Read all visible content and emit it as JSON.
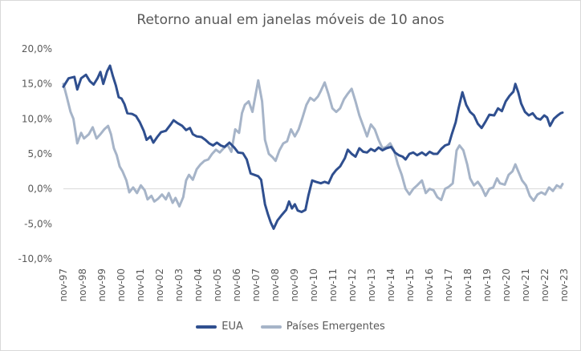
{
  "chart_data": {
    "type": "line",
    "title": "Retorno anual em janelas móveis de 10 anos",
    "xlabel": "",
    "ylabel": "",
    "ylim": [
      -10,
      20
    ],
    "y_ticks": [
      20,
      15,
      10,
      5,
      0,
      -5,
      -10
    ],
    "y_tick_labels": [
      "20,0%",
      "15,0%",
      "10,0%",
      "5,0%",
      "0,0%",
      "-5,0%",
      "-10,0%"
    ],
    "x_range": [
      1997.83,
      2023.75
    ],
    "x_tick_positions": [
      1997.83,
      1998.83,
      1999.83,
      2000.83,
      2001.83,
      2002.83,
      2003.83,
      2004.83,
      2005.83,
      2006.83,
      2007.83,
      2008.83,
      2009.83,
      2010.83,
      2011.83,
      2012.83,
      2013.83,
      2014.83,
      2015.83,
      2016.83,
      2017.83,
      2018.83,
      2019.83,
      2020.83,
      2021.83,
      2022.83,
      2023.83
    ],
    "x_tick_labels": [
      "nov-97",
      "nov-98",
      "nov-99",
      "nov-00",
      "nov-01",
      "nov-02",
      "nov-03",
      "nov-04",
      "nov-05",
      "nov-06",
      "nov-07",
      "nov-08",
      "nov-09",
      "nov-10",
      "nov-11",
      "nov-12",
      "nov-13",
      "nov-14",
      "nov-15",
      "nov-16",
      "nov-17",
      "nov-18",
      "nov-19",
      "nov-20",
      "nov-21",
      "nov-22",
      "nov-23"
    ],
    "legend_position": "bottom",
    "series": [
      {
        "name": "EUA",
        "color": "#2f4f8f",
        "points": [
          [
            1997.83,
            14.6
          ],
          [
            1998.1,
            15.8
          ],
          [
            1998.4,
            16.0
          ],
          [
            1998.55,
            14.2
          ],
          [
            1998.75,
            15.8
          ],
          [
            1999.0,
            16.3
          ],
          [
            1999.2,
            15.4
          ],
          [
            1999.4,
            14.9
          ],
          [
            1999.6,
            15.8
          ],
          [
            1999.75,
            16.7
          ],
          [
            1999.9,
            15.0
          ],
          [
            2000.1,
            16.8
          ],
          [
            2000.25,
            17.6
          ],
          [
            2000.4,
            16.1
          ],
          [
            2000.55,
            14.8
          ],
          [
            2000.7,
            13.1
          ],
          [
            2000.85,
            12.9
          ],
          [
            2001.0,
            12.1
          ],
          [
            2001.15,
            10.8
          ],
          [
            2001.4,
            10.7
          ],
          [
            2001.6,
            10.4
          ],
          [
            2001.8,
            9.5
          ],
          [
            2002.0,
            8.3
          ],
          [
            2002.15,
            7.0
          ],
          [
            2002.35,
            7.5
          ],
          [
            2002.5,
            6.6
          ],
          [
            2002.7,
            7.4
          ],
          [
            2002.9,
            8.1
          ],
          [
            2003.15,
            8.3
          ],
          [
            2003.4,
            9.2
          ],
          [
            2003.55,
            9.8
          ],
          [
            2003.75,
            9.4
          ],
          [
            2004.0,
            9.0
          ],
          [
            2004.2,
            8.4
          ],
          [
            2004.4,
            8.7
          ],
          [
            2004.55,
            7.8
          ],
          [
            2004.75,
            7.5
          ],
          [
            2005.0,
            7.4
          ],
          [
            2005.2,
            7.0
          ],
          [
            2005.4,
            6.5
          ],
          [
            2005.6,
            6.2
          ],
          [
            2005.8,
            6.6
          ],
          [
            2006.0,
            6.2
          ],
          [
            2006.2,
            6.0
          ],
          [
            2006.45,
            6.6
          ],
          [
            2006.7,
            5.9
          ],
          [
            2006.9,
            5.2
          ],
          [
            2007.15,
            5.1
          ],
          [
            2007.35,
            4.2
          ],
          [
            2007.55,
            2.2
          ],
          [
            2007.75,
            2.0
          ],
          [
            2007.95,
            1.8
          ],
          [
            2008.1,
            1.3
          ],
          [
            2008.3,
            -2.2
          ],
          [
            2008.45,
            -3.6
          ],
          [
            2008.6,
            -4.8
          ],
          [
            2008.75,
            -5.7
          ],
          [
            2008.95,
            -4.5
          ],
          [
            2009.15,
            -3.8
          ],
          [
            2009.4,
            -3.0
          ],
          [
            2009.55,
            -1.8
          ],
          [
            2009.7,
            -2.8
          ],
          [
            2009.85,
            -2.2
          ],
          [
            2010.0,
            -3.1
          ],
          [
            2010.2,
            -3.3
          ],
          [
            2010.4,
            -3.0
          ],
          [
            2010.55,
            -1.0
          ],
          [
            2010.75,
            1.2
          ],
          [
            2010.95,
            1.0
          ],
          [
            2011.2,
            0.8
          ],
          [
            2011.4,
            1.0
          ],
          [
            2011.6,
            0.8
          ],
          [
            2011.8,
            2.0
          ],
          [
            2012.0,
            2.7
          ],
          [
            2012.2,
            3.2
          ],
          [
            2012.45,
            4.4
          ],
          [
            2012.6,
            5.6
          ],
          [
            2012.8,
            5.0
          ],
          [
            2013.0,
            4.6
          ],
          [
            2013.2,
            5.8
          ],
          [
            2013.4,
            5.3
          ],
          [
            2013.6,
            5.2
          ],
          [
            2013.8,
            5.7
          ],
          [
            2014.0,
            5.4
          ],
          [
            2014.2,
            5.9
          ],
          [
            2014.4,
            5.5
          ],
          [
            2014.6,
            5.8
          ],
          [
            2014.85,
            6.0
          ],
          [
            2015.05,
            5.2
          ],
          [
            2015.25,
            4.8
          ],
          [
            2015.45,
            4.6
          ],
          [
            2015.6,
            4.2
          ],
          [
            2015.8,
            5.0
          ],
          [
            2016.0,
            5.2
          ],
          [
            2016.2,
            4.8
          ],
          [
            2016.45,
            5.2
          ],
          [
            2016.65,
            4.8
          ],
          [
            2016.85,
            5.3
          ],
          [
            2017.05,
            5.0
          ],
          [
            2017.25,
            5.0
          ],
          [
            2017.45,
            5.7
          ],
          [
            2017.65,
            6.2
          ],
          [
            2017.85,
            6.4
          ],
          [
            2018.0,
            7.8
          ],
          [
            2018.2,
            9.5
          ],
          [
            2018.35,
            11.5
          ],
          [
            2018.55,
            13.8
          ],
          [
            2018.75,
            12.0
          ],
          [
            2018.95,
            11.0
          ],
          [
            2019.15,
            10.5
          ],
          [
            2019.35,
            9.3
          ],
          [
            2019.55,
            8.7
          ],
          [
            2019.75,
            9.6
          ],
          [
            2019.95,
            10.6
          ],
          [
            2020.2,
            10.5
          ],
          [
            2020.4,
            11.5
          ],
          [
            2020.6,
            11.1
          ],
          [
            2020.8,
            12.5
          ],
          [
            2021.0,
            13.3
          ],
          [
            2021.2,
            13.9
          ],
          [
            2021.3,
            15.0
          ],
          [
            2021.45,
            13.8
          ],
          [
            2021.6,
            12.2
          ],
          [
            2021.8,
            11.0
          ],
          [
            2022.0,
            10.5
          ],
          [
            2022.2,
            10.8
          ],
          [
            2022.4,
            10.1
          ],
          [
            2022.6,
            9.9
          ],
          [
            2022.8,
            10.5
          ],
          [
            2022.95,
            10.2
          ],
          [
            2023.1,
            9.0
          ],
          [
            2023.3,
            10.0
          ],
          [
            2023.5,
            10.5
          ],
          [
            2023.65,
            10.8
          ],
          [
            2023.75,
            10.9
          ]
        ]
      },
      {
        "name": "Países Emergentes",
        "color": "#a6b4c8",
        "points": [
          [
            1997.83,
            15.0
          ],
          [
            1998.0,
            13.2
          ],
          [
            1998.2,
            11.0
          ],
          [
            1998.35,
            10.0
          ],
          [
            1998.55,
            6.5
          ],
          [
            1998.75,
            8.0
          ],
          [
            1998.9,
            7.2
          ],
          [
            1999.15,
            7.8
          ],
          [
            1999.35,
            8.8
          ],
          [
            1999.55,
            7.2
          ],
          [
            1999.75,
            7.8
          ],
          [
            1999.95,
            8.5
          ],
          [
            2000.15,
            9.0
          ],
          [
            2000.3,
            7.8
          ],
          [
            2000.45,
            5.8
          ],
          [
            2000.6,
            4.8
          ],
          [
            2000.75,
            3.2
          ],
          [
            2000.9,
            2.5
          ],
          [
            2001.1,
            1.2
          ],
          [
            2001.25,
            -0.5
          ],
          [
            2001.45,
            0.2
          ],
          [
            2001.65,
            -0.6
          ],
          [
            2001.85,
            0.5
          ],
          [
            2002.05,
            -0.2
          ],
          [
            2002.2,
            -1.5
          ],
          [
            2002.4,
            -1.0
          ],
          [
            2002.55,
            -1.8
          ],
          [
            2002.75,
            -1.4
          ],
          [
            2002.95,
            -0.8
          ],
          [
            2003.15,
            -1.5
          ],
          [
            2003.3,
            -0.6
          ],
          [
            2003.5,
            -2.0
          ],
          [
            2003.65,
            -1.3
          ],
          [
            2003.85,
            -2.5
          ],
          [
            2004.05,
            -1.2
          ],
          [
            2004.2,
            1.2
          ],
          [
            2004.35,
            2.0
          ],
          [
            2004.55,
            1.3
          ],
          [
            2004.75,
            2.8
          ],
          [
            2004.95,
            3.5
          ],
          [
            2005.15,
            4.0
          ],
          [
            2005.35,
            4.2
          ],
          [
            2005.55,
            5.0
          ],
          [
            2005.75,
            5.6
          ],
          [
            2005.95,
            5.2
          ],
          [
            2006.15,
            5.8
          ],
          [
            2006.35,
            6.3
          ],
          [
            2006.55,
            5.3
          ],
          [
            2006.75,
            8.5
          ],
          [
            2006.95,
            8.0
          ],
          [
            2007.1,
            10.8
          ],
          [
            2007.25,
            12.0
          ],
          [
            2007.45,
            12.5
          ],
          [
            2007.65,
            11.0
          ],
          [
            2007.85,
            14.0
          ],
          [
            2007.95,
            15.5
          ],
          [
            2008.15,
            12.5
          ],
          [
            2008.3,
            7.0
          ],
          [
            2008.5,
            5.0
          ],
          [
            2008.7,
            4.5
          ],
          [
            2008.85,
            4.0
          ],
          [
            2009.05,
            5.5
          ],
          [
            2009.25,
            6.5
          ],
          [
            2009.45,
            6.8
          ],
          [
            2009.65,
            8.5
          ],
          [
            2009.85,
            7.5
          ],
          [
            2010.05,
            8.5
          ],
          [
            2010.25,
            10.2
          ],
          [
            2010.45,
            12.0
          ],
          [
            2010.65,
            13.0
          ],
          [
            2010.85,
            12.6
          ],
          [
            2011.05,
            13.2
          ],
          [
            2011.2,
            14.0
          ],
          [
            2011.4,
            15.2
          ],
          [
            2011.6,
            13.5
          ],
          [
            2011.8,
            11.5
          ],
          [
            2012.0,
            11.0
          ],
          [
            2012.2,
            11.5
          ],
          [
            2012.4,
            12.8
          ],
          [
            2012.6,
            13.6
          ],
          [
            2012.8,
            14.3
          ],
          [
            2013.0,
            12.5
          ],
          [
            2013.2,
            10.5
          ],
          [
            2013.4,
            9.0
          ],
          [
            2013.6,
            7.5
          ],
          [
            2013.8,
            9.2
          ],
          [
            2014.0,
            8.5
          ],
          [
            2014.2,
            7.0
          ],
          [
            2014.4,
            5.8
          ],
          [
            2014.6,
            6.0
          ],
          [
            2014.8,
            6.5
          ],
          [
            2015.0,
            5.5
          ],
          [
            2015.2,
            3.5
          ],
          [
            2015.4,
            2.0
          ],
          [
            2015.6,
            0.0
          ],
          [
            2015.8,
            -0.8
          ],
          [
            2016.0,
            0.0
          ],
          [
            2016.2,
            0.5
          ],
          [
            2016.45,
            1.2
          ],
          [
            2016.65,
            -0.6
          ],
          [
            2016.85,
            0.0
          ],
          [
            2017.05,
            -0.2
          ],
          [
            2017.25,
            -1.2
          ],
          [
            2017.45,
            -1.6
          ],
          [
            2017.65,
            0.0
          ],
          [
            2017.85,
            0.3
          ],
          [
            2018.05,
            0.8
          ],
          [
            2018.25,
            5.5
          ],
          [
            2018.4,
            6.2
          ],
          [
            2018.6,
            5.5
          ],
          [
            2018.8,
            3.5
          ],
          [
            2018.95,
            1.5
          ],
          [
            2019.15,
            0.5
          ],
          [
            2019.35,
            1.0
          ],
          [
            2019.55,
            0.2
          ],
          [
            2019.75,
            -1.0
          ],
          [
            2019.95,
            0.0
          ],
          [
            2020.15,
            0.2
          ],
          [
            2020.35,
            1.5
          ],
          [
            2020.5,
            0.8
          ],
          [
            2020.75,
            0.6
          ],
          [
            2020.95,
            2.0
          ],
          [
            2021.15,
            2.5
          ],
          [
            2021.3,
            3.5
          ],
          [
            2021.45,
            2.5
          ],
          [
            2021.65,
            1.2
          ],
          [
            2021.85,
            0.5
          ],
          [
            2022.05,
            -1.0
          ],
          [
            2022.25,
            -1.7
          ],
          [
            2022.45,
            -0.8
          ],
          [
            2022.65,
            -0.5
          ],
          [
            2022.85,
            -0.8
          ],
          [
            2023.05,
            0.2
          ],
          [
            2023.25,
            -0.3
          ],
          [
            2023.45,
            0.5
          ],
          [
            2023.65,
            0.2
          ],
          [
            2023.75,
            0.7
          ]
        ]
      }
    ]
  }
}
